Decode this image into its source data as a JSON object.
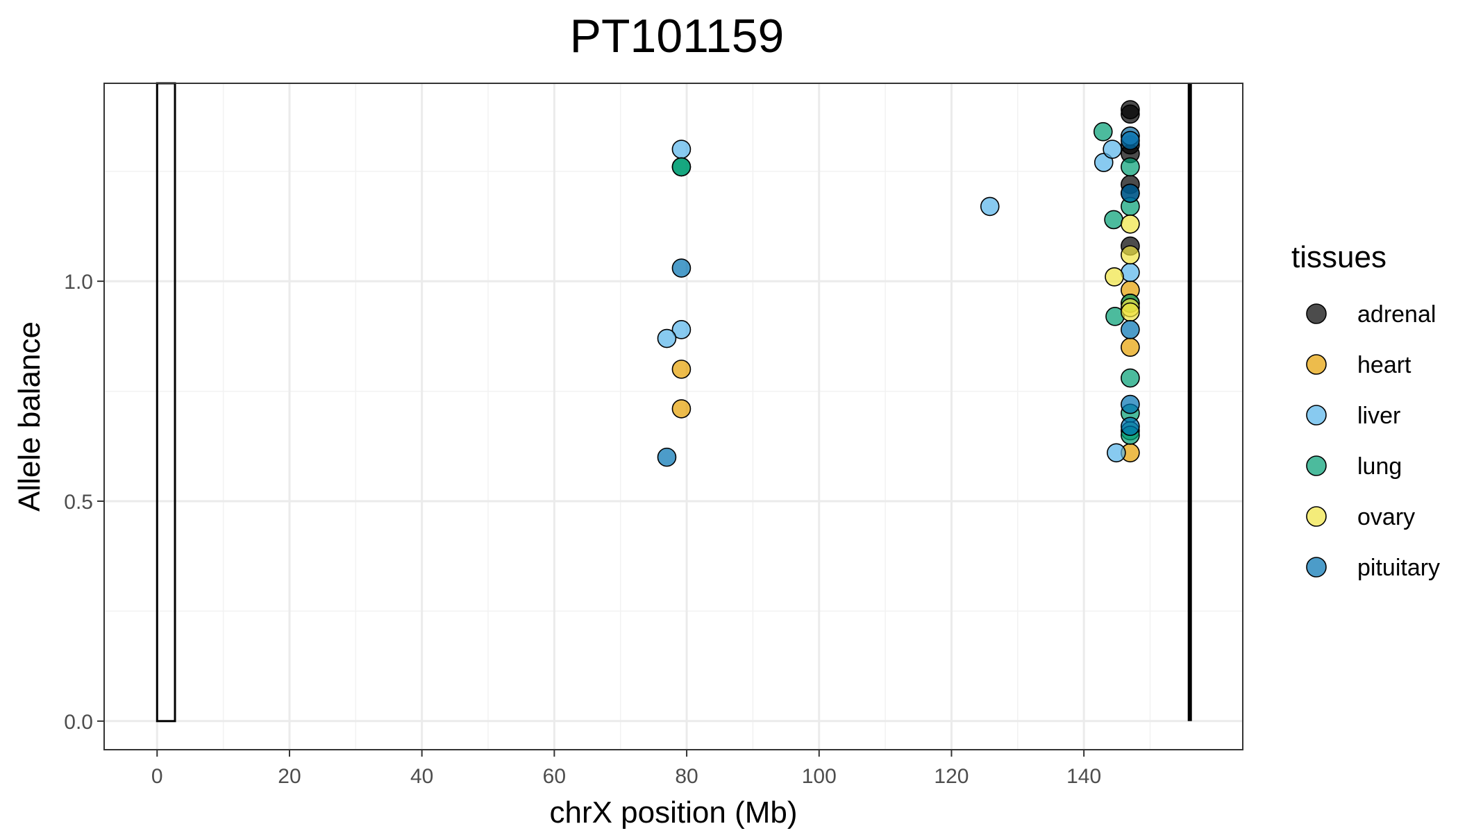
{
  "chart_data": {
    "type": "scatter",
    "title": "PT101159",
    "xlabel": "chrX position (Mb)",
    "ylabel": "Allele balance",
    "xlim": [
      -8,
      164
    ],
    "ylim": [
      -0.065,
      1.45
    ],
    "x_ticks": [
      0,
      20,
      40,
      60,
      80,
      100,
      120,
      140
    ],
    "x_tick_labels": [
      "0",
      "20",
      "40",
      "60",
      "80",
      "100",
      "120",
      "140"
    ],
    "y_ticks": [
      0.0,
      0.5,
      1.0
    ],
    "y_tick_labels": [
      "0.0",
      "0.5",
      "1.0"
    ],
    "grid": true,
    "legend": {
      "title": "tissues",
      "position": "right"
    },
    "reference_features": {
      "rectangle": {
        "x_start": 0,
        "x_end": 2.7,
        "y_start": 0,
        "y_end": 1.45
      },
      "vertical_line": {
        "x": 156,
        "y_start": 0,
        "y_end": 1.45
      }
    },
    "series": [
      {
        "name": "adrenal",
        "color": "#000000",
        "points": [
          [
            147.0,
            1.39
          ],
          [
            147.0,
            1.38
          ],
          [
            147.0,
            1.33
          ],
          [
            147.0,
            1.31
          ],
          [
            147.0,
            1.29
          ],
          [
            147.0,
            1.22
          ],
          [
            147.0,
            1.2
          ],
          [
            147.0,
            1.08
          ]
        ]
      },
      {
        "name": "heart",
        "color": "#E69F00",
        "points": [
          [
            79.2,
            0.8
          ],
          [
            79.2,
            0.71
          ],
          [
            147.0,
            0.98
          ],
          [
            147.0,
            0.95
          ],
          [
            147.0,
            0.85
          ],
          [
            147.0,
            0.61
          ]
        ]
      },
      {
        "name": "liver",
        "color": "#56B4E9",
        "points": [
          [
            79.2,
            1.3
          ],
          [
            79.2,
            0.89
          ],
          [
            77.0,
            0.87
          ],
          [
            125.8,
            1.17
          ],
          [
            143.0,
            1.27
          ],
          [
            144.3,
            1.3
          ],
          [
            147.0,
            1.33
          ],
          [
            147.0,
            1.02
          ],
          [
            144.9,
            0.61
          ]
        ]
      },
      {
        "name": "lung",
        "color": "#009E73",
        "points": [
          [
            79.2,
            1.26
          ],
          [
            79.2,
            1.26
          ],
          [
            142.9,
            1.34
          ],
          [
            147.0,
            1.26
          ],
          [
            147.0,
            1.17
          ],
          [
            144.5,
            1.14
          ],
          [
            144.7,
            0.92
          ],
          [
            147.0,
            0.95
          ],
          [
            147.0,
            0.78
          ],
          [
            147.0,
            0.7
          ],
          [
            147.0,
            0.66
          ],
          [
            147.0,
            0.65
          ]
        ]
      },
      {
        "name": "ovary",
        "color": "#F0E442",
        "points": [
          [
            147.0,
            1.13
          ],
          [
            147.0,
            1.06
          ],
          [
            144.6,
            1.01
          ],
          [
            147.0,
            0.94
          ],
          [
            147.0,
            0.93
          ]
        ]
      },
      {
        "name": "pituitary",
        "color": "#0072B2",
        "points": [
          [
            79.2,
            1.03
          ],
          [
            77.0,
            0.6
          ],
          [
            147.0,
            1.32
          ],
          [
            147.0,
            1.2
          ],
          [
            147.0,
            0.89
          ],
          [
            147.0,
            0.72
          ],
          [
            147.0,
            0.67
          ]
        ]
      }
    ]
  }
}
